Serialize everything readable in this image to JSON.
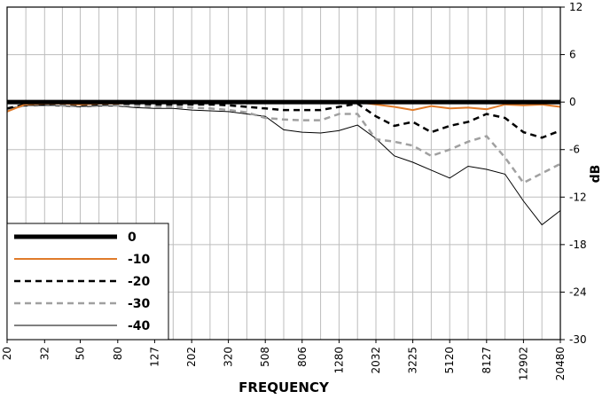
{
  "chart_data": {
    "type": "line",
    "xlabel": "FREQUENCY",
    "ylabel": "dB",
    "x": [
      20,
      25,
      32,
      40,
      50,
      63,
      80,
      100,
      127,
      160,
      202,
      254,
      320,
      403,
      508,
      640,
      806,
      1016,
      1280,
      1613,
      2032,
      2560,
      3225,
      4064,
      5120,
      6451,
      8127,
      10240,
      12902,
      16255,
      20480
    ],
    "xscale": "log",
    "xlim": [
      20,
      20480
    ],
    "xticks": [
      20,
      32,
      50,
      80,
      127,
      202,
      320,
      508,
      806,
      1280,
      2032,
      3225,
      5120,
      8127,
      12902,
      20480
    ],
    "ylim": [
      -30,
      12
    ],
    "yticks": [
      -30,
      -24,
      -18,
      -12,
      -6,
      0,
      6,
      12
    ],
    "grid": true,
    "legend": "lower left",
    "series": [
      {
        "name": "0",
        "color": "#000000",
        "width": 5,
        "dash": "solid",
        "values": [
          0,
          0,
          0,
          0,
          0,
          0,
          0,
          0,
          0,
          0,
          0,
          0,
          0,
          0,
          0,
          0,
          0,
          0,
          0,
          0,
          0,
          0,
          0,
          0,
          0,
          0,
          0,
          0,
          0,
          0,
          0
        ]
      },
      {
        "name": "-10",
        "color": "#e07b2a",
        "width": 2,
        "dash": "solid",
        "values": [
          -1.2,
          -0.3,
          -0.2,
          -0.2,
          -0.3,
          -0.2,
          -0.2,
          -0.1,
          -0.1,
          -0.1,
          -0.1,
          -0.1,
          -0.1,
          -0.1,
          -0.1,
          -0.1,
          -0.1,
          -0.1,
          -0.1,
          0,
          -0.3,
          -0.6,
          -1,
          -0.5,
          -0.8,
          -0.7,
          -0.9,
          -0.3,
          -0.4,
          -0.3,
          -0.6
        ]
      },
      {
        "name": "-20",
        "color": "#000000",
        "width": 2.5,
        "dash": "dashed",
        "values": [
          -0.8,
          -0.3,
          -0.3,
          -0.2,
          -0.4,
          -0.3,
          -0.2,
          -0.2,
          -0.3,
          -0.3,
          -0.3,
          -0.3,
          -0.4,
          -0.6,
          -0.8,
          -1,
          -1,
          -1,
          -0.6,
          -0.2,
          -1.8,
          -3,
          -2.5,
          -3.8,
          -3,
          -2.5,
          -1.5,
          -2,
          -3.8,
          -4.5,
          -3.6
        ]
      },
      {
        "name": "-30",
        "color": "#a0a0a0",
        "width": 2.5,
        "dash": "dashed",
        "values": [
          -1,
          -0.4,
          -0.4,
          -0.4,
          -0.5,
          -0.4,
          -0.4,
          -0.5,
          -0.6,
          -0.6,
          -0.7,
          -0.8,
          -1,
          -1.3,
          -2,
          -2.2,
          -2.3,
          -2.3,
          -1.5,
          -1.5,
          -4.7,
          -5,
          -5.5,
          -6.8,
          -6,
          -5,
          -4.3,
          -7,
          -10.2,
          -9,
          -7.8
        ]
      },
      {
        "name": "-40",
        "color": "#000000",
        "width": 1,
        "dash": "solid",
        "values": [
          -0.8,
          -0.5,
          -0.4,
          -0.5,
          -0.6,
          -0.5,
          -0.5,
          -0.7,
          -0.8,
          -0.8,
          -1,
          -1.1,
          -1.2,
          -1.5,
          -1.8,
          -3.5,
          -3.8,
          -3.9,
          -3.6,
          -2.9,
          -4.6,
          -6.8,
          -7.6,
          -8.6,
          -9.6,
          -8.1,
          -8.5,
          -9.1,
          -12.5,
          -15.5,
          -13.7
        ]
      }
    ]
  }
}
